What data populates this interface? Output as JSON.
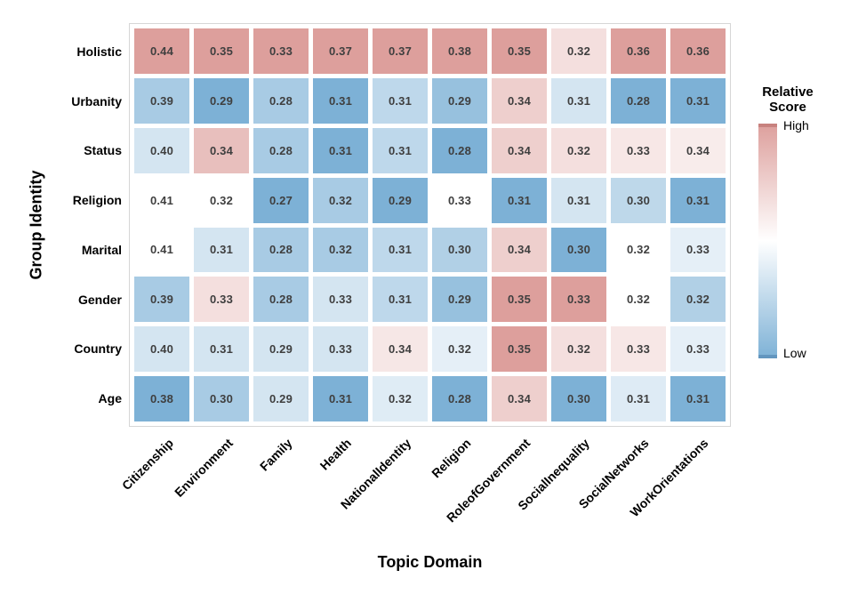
{
  "chart_data": {
    "type": "heatmap",
    "xlabel": "Topic Domain",
    "ylabel": "Group Identity",
    "value_decimals": 2,
    "legend": {
      "title": "Relative Score",
      "high_label": "High",
      "low_label": "Low"
    },
    "colors": {
      "high": "#dd9f9c",
      "mid": "#ffffff",
      "low": "#7db1d6",
      "cell_text": "#3f3f3f",
      "panel_border": "#d6d6d6",
      "normalization": "per-column"
    },
    "categories_x": [
      "Citizenship",
      "Environment",
      "Family",
      "Health",
      "NationalIdentity",
      "Religion",
      "RoleofGovernment",
      "SocialInequality",
      "SocialNetworks",
      "WorkOrientations"
    ],
    "categories_y": [
      "Holistic",
      "Urbanity",
      "Status",
      "Religion",
      "Marital",
      "Gender",
      "Country",
      "Age"
    ],
    "values": [
      [
        0.44,
        0.35,
        0.33,
        0.37,
        0.37,
        0.38,
        0.35,
        0.32,
        0.36,
        0.36
      ],
      [
        0.39,
        0.29,
        0.28,
        0.31,
        0.31,
        0.29,
        0.34,
        0.31,
        0.28,
        0.31
      ],
      [
        0.4,
        0.34,
        0.28,
        0.31,
        0.31,
        0.28,
        0.34,
        0.32,
        0.33,
        0.34
      ],
      [
        0.41,
        0.32,
        0.27,
        0.32,
        0.29,
        0.33,
        0.31,
        0.31,
        0.3,
        0.31
      ],
      [
        0.41,
        0.31,
        0.28,
        0.32,
        0.31,
        0.3,
        0.34,
        0.3,
        0.32,
        0.33
      ],
      [
        0.39,
        0.33,
        0.28,
        0.33,
        0.31,
        0.29,
        0.35,
        0.33,
        0.32,
        0.32
      ],
      [
        0.4,
        0.31,
        0.29,
        0.33,
        0.34,
        0.32,
        0.35,
        0.32,
        0.33,
        0.33
      ],
      [
        0.38,
        0.3,
        0.29,
        0.31,
        0.32,
        0.28,
        0.34,
        0.3,
        0.31,
        0.31
      ]
    ]
  }
}
